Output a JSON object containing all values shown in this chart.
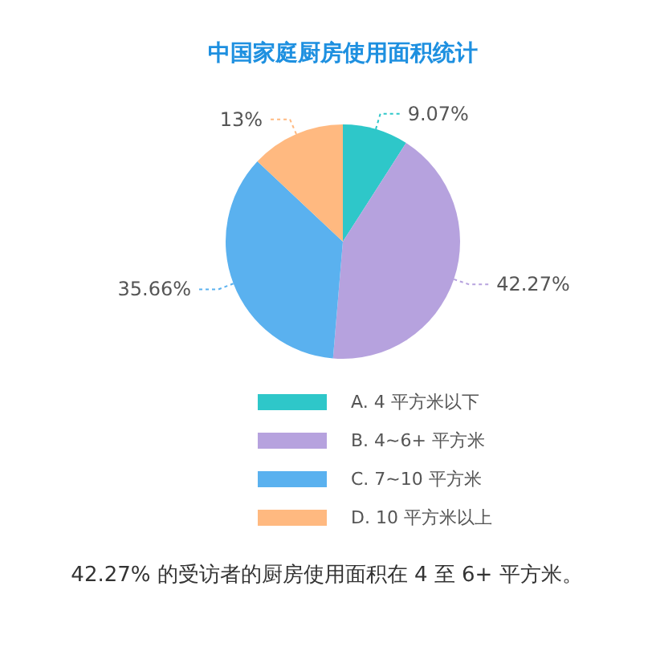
{
  "chart_data": {
    "type": "pie",
    "title": "中国家庭厨房使用面积统计",
    "categories": [
      "A. 4 平方米以下",
      "B. 4~6+ 平方米",
      "C. 7~10 平方米",
      "D. 10 平方米以上"
    ],
    "values": [
      9.07,
      42.27,
      35.66,
      13
    ],
    "colors": [
      "#2ec7c9",
      "#b6a2de",
      "#5ab1ef",
      "#ffb980"
    ],
    "value_labels": [
      "9.07%",
      "42.27%",
      "35.66%",
      "13%"
    ],
    "legend": "bottom",
    "annotations": [
      "42.27% 的受访者的厨房使用面积在 4 至 6+ 平方米。"
    ]
  }
}
